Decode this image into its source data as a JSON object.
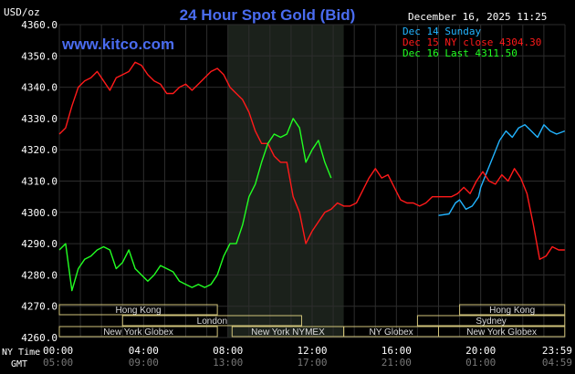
{
  "header": {
    "unit": "USD/oz",
    "title": "24 Hour Spot Gold (Bid)",
    "website": "www.kitco.com",
    "datetime": "December 16, 2025 11:25"
  },
  "legend": [
    {
      "text": "Dec 14 Sunday",
      "color": "#22b4ff"
    },
    {
      "text": "Dec 15 NY close 4304.30",
      "color": "#ff1a1a"
    },
    {
      "text": "Dec 16 Last 4311.50",
      "color": "#22ff22"
    }
  ],
  "time_rows": {
    "ny_label": "NY Time",
    "gmt_label": "GMT",
    "ny_ticks": [
      "00:00",
      "04:00",
      "08:00",
      "12:00",
      "16:00",
      "20:00",
      "23:59"
    ],
    "gmt_ticks": [
      "05:00",
      "09:00",
      "13:00",
      "17:00",
      "21:00",
      "01:00",
      "04:59"
    ]
  },
  "markets": [
    {
      "label": "Hong Kong",
      "start": 0,
      "end": 7.5,
      "row": 0
    },
    {
      "label": "Hong Kong",
      "start": 19.0,
      "end": 23.99,
      "row": 0
    },
    {
      "label": "London",
      "start": 3.0,
      "end": 11.5,
      "row": 1
    },
    {
      "label": "Sydney",
      "start": 17.0,
      "end": 23.99,
      "row": 1
    },
    {
      "label": "New York Globex",
      "start": 0,
      "end": 7.5,
      "row": 2
    },
    {
      "label": "New York NYMEX",
      "start": 8.2,
      "end": 13.5,
      "row": 2
    },
    {
      "label": "NY Globex",
      "start": 13.5,
      "end": 18.0,
      "row": 2
    },
    {
      "label": "New York Globex",
      "start": 18.0,
      "end": 23.99,
      "row": 2
    }
  ],
  "colors": {
    "background": "#000000",
    "grid": "#2d2d2d",
    "highlight_band": "#1b211b",
    "title": "#4a6cf0",
    "text": "#ffffff",
    "market_box": "#cfc27a",
    "session_text": "#dddddd"
  },
  "chart_data": {
    "type": "line",
    "title": "24 Hour Spot Gold (Bid)",
    "ylabel": "USD/oz",
    "xlabel": "NY Time",
    "ylim": [
      4260,
      4360
    ],
    "yticks": [
      "4360.0",
      "4350.0",
      "4340.0",
      "4330.0",
      "4320.0",
      "4310.0",
      "4300.0",
      "4290.0",
      "4280.0",
      "4270.0",
      "4260.0"
    ],
    "xlim": [
      0,
      24
    ],
    "x_unit": "hours (NY time)",
    "highlight_range": [
      8.0,
      13.5
    ],
    "grid": true,
    "legend_position": "top-right",
    "series": [
      {
        "name": "Dec 14 Sunday",
        "color": "#22b4ff",
        "points": [
          [
            18.0,
            4299.0
          ],
          [
            18.5,
            4299.5
          ],
          [
            18.8,
            4303
          ],
          [
            19.0,
            4304
          ],
          [
            19.3,
            4301
          ],
          [
            19.6,
            4302
          ],
          [
            19.9,
            4305
          ],
          [
            20.0,
            4308
          ],
          [
            20.3,
            4313
          ],
          [
            20.6,
            4318
          ],
          [
            20.9,
            4323
          ],
          [
            21.2,
            4326
          ],
          [
            21.5,
            4324
          ],
          [
            21.8,
            4327
          ],
          [
            22.1,
            4328
          ],
          [
            22.4,
            4326
          ],
          [
            22.7,
            4324
          ],
          [
            23.0,
            4328
          ],
          [
            23.3,
            4326
          ],
          [
            23.6,
            4325
          ],
          [
            23.99,
            4326
          ]
        ]
      },
      {
        "name": "Dec 15 NY close 4304.30",
        "color": "#ff1a1a",
        "points": [
          [
            0,
            4325
          ],
          [
            0.3,
            4327
          ],
          [
            0.6,
            4334
          ],
          [
            0.9,
            4340
          ],
          [
            1.2,
            4342
          ],
          [
            1.5,
            4343
          ],
          [
            1.8,
            4345
          ],
          [
            2.1,
            4342
          ],
          [
            2.4,
            4339
          ],
          [
            2.7,
            4343
          ],
          [
            3.0,
            4344
          ],
          [
            3.3,
            4345
          ],
          [
            3.6,
            4348
          ],
          [
            3.9,
            4347
          ],
          [
            4.2,
            4344
          ],
          [
            4.5,
            4342
          ],
          [
            4.8,
            4341
          ],
          [
            5.1,
            4338
          ],
          [
            5.4,
            4338
          ],
          [
            5.7,
            4340
          ],
          [
            6.0,
            4341
          ],
          [
            6.3,
            4339
          ],
          [
            6.6,
            4341
          ],
          [
            6.9,
            4343
          ],
          [
            7.2,
            4345
          ],
          [
            7.5,
            4346
          ],
          [
            7.8,
            4344
          ],
          [
            8.1,
            4340
          ],
          [
            8.4,
            4338
          ],
          [
            8.7,
            4336
          ],
          [
            9.0,
            4332
          ],
          [
            9.3,
            4326
          ],
          [
            9.6,
            4322
          ],
          [
            9.9,
            4322
          ],
          [
            10.2,
            4318
          ],
          [
            10.5,
            4316
          ],
          [
            10.8,
            4316
          ],
          [
            11.1,
            4305
          ],
          [
            11.4,
            4300
          ],
          [
            11.7,
            4290
          ],
          [
            12.0,
            4294
          ],
          [
            12.3,
            4297
          ],
          [
            12.6,
            4300
          ],
          [
            12.9,
            4301
          ],
          [
            13.2,
            4303
          ],
          [
            13.5,
            4302
          ],
          [
            13.8,
            4302
          ],
          [
            14.1,
            4303
          ],
          [
            14.4,
            4307
          ],
          [
            14.7,
            4311
          ],
          [
            15.0,
            4314
          ],
          [
            15.3,
            4311
          ],
          [
            15.6,
            4312
          ],
          [
            15.9,
            4308
          ],
          [
            16.2,
            4304
          ],
          [
            16.5,
            4303
          ],
          [
            16.8,
            4303
          ],
          [
            17.1,
            4302
          ],
          [
            17.4,
            4303
          ],
          [
            17.7,
            4305
          ],
          [
            18.0,
            4305
          ],
          [
            18.3,
            4305
          ],
          [
            18.6,
            4305
          ],
          [
            18.9,
            4306
          ],
          [
            19.2,
            4308
          ],
          [
            19.5,
            4306
          ],
          [
            19.8,
            4310
          ],
          [
            20.1,
            4313
          ],
          [
            20.4,
            4310
          ],
          [
            20.7,
            4309
          ],
          [
            21.0,
            4312
          ],
          [
            21.3,
            4310
          ],
          [
            21.6,
            4314
          ],
          [
            21.9,
            4311
          ],
          [
            22.2,
            4306
          ],
          [
            22.5,
            4296
          ],
          [
            22.8,
            4285
          ],
          [
            23.1,
            4286
          ],
          [
            23.4,
            4289
          ],
          [
            23.7,
            4288
          ],
          [
            23.99,
            4288
          ]
        ]
      },
      {
        "name": "Dec 16 Last 4311.50",
        "color": "#22ff22",
        "points": [
          [
            0,
            4288
          ],
          [
            0.3,
            4290
          ],
          [
            0.6,
            4275
          ],
          [
            0.9,
            4282
          ],
          [
            1.2,
            4285
          ],
          [
            1.5,
            4286
          ],
          [
            1.8,
            4288
          ],
          [
            2.1,
            4289
          ],
          [
            2.4,
            4288
          ],
          [
            2.7,
            4282
          ],
          [
            3.0,
            4284
          ],
          [
            3.3,
            4288
          ],
          [
            3.6,
            4282
          ],
          [
            3.9,
            4280
          ],
          [
            4.2,
            4278
          ],
          [
            4.5,
            4280
          ],
          [
            4.8,
            4283
          ],
          [
            5.1,
            4282
          ],
          [
            5.4,
            4281
          ],
          [
            5.7,
            4278
          ],
          [
            6.0,
            4277
          ],
          [
            6.3,
            4276
          ],
          [
            6.6,
            4277
          ],
          [
            6.9,
            4276
          ],
          [
            7.2,
            4277
          ],
          [
            7.5,
            4280
          ],
          [
            7.8,
            4286
          ],
          [
            8.1,
            4290
          ],
          [
            8.4,
            4290
          ],
          [
            8.7,
            4296
          ],
          [
            9.0,
            4305
          ],
          [
            9.3,
            4309
          ],
          [
            9.6,
            4316
          ],
          [
            9.9,
            4322
          ],
          [
            10.2,
            4325
          ],
          [
            10.5,
            4324
          ],
          [
            10.8,
            4325
          ],
          [
            11.1,
            4330
          ],
          [
            11.4,
            4327
          ],
          [
            11.7,
            4316
          ],
          [
            12.0,
            4320
          ],
          [
            12.3,
            4323
          ],
          [
            12.6,
            4316
          ],
          [
            12.9,
            4311
          ]
        ]
      }
    ]
  }
}
